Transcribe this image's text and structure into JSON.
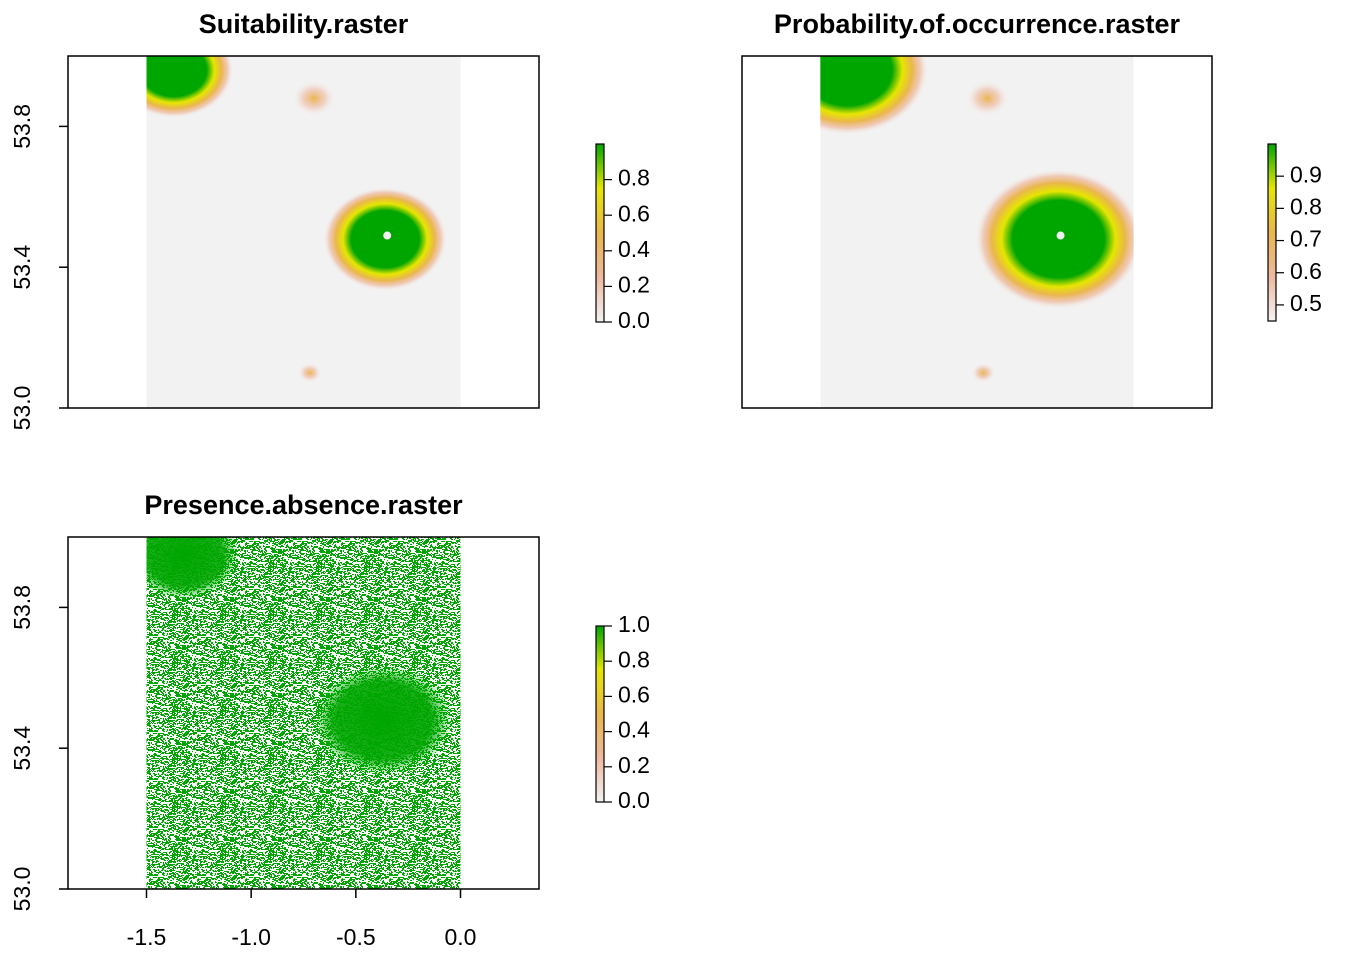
{
  "chart_data": [
    {
      "type": "raster",
      "title": "Suitability.raster",
      "xlim": [
        -1.875,
        0.375
      ],
      "ylim": [
        53.0,
        54.0
      ],
      "extent": [
        -1.5,
        0,
        53.0,
        54.0
      ],
      "yticks": [
        {
          "value": 53.0,
          "label": "53.0"
        },
        53.4,
        53.8
      ],
      "colors": [
        "#f2f2f2",
        "#eeb99f",
        "#eab64e",
        "#e6e600",
        "#00a600"
      ],
      "clim": [
        0,
        1.0
      ],
      "cticks": [
        {
          "value": 0,
          "label": "0.0"
        },
        0.2,
        0.4,
        0.6,
        0.8
      ]
    },
    {
      "type": "raster",
      "title": "Probability.of.occurrence.raster",
      "xlim": [
        -1.875,
        0.375
      ],
      "ylim": [
        53.0,
        54.0
      ],
      "extent": [
        -1.5,
        0,
        53.0,
        54.0
      ],
      "colors": [
        "#f2f2f2",
        "#eeb99f",
        "#eab64e",
        "#e6e600",
        "#00a600"
      ],
      "clim": [
        0.45,
        1.0
      ],
      "cticks": [
        0.5,
        0.6,
        0.7,
        0.8,
        0.9
      ]
    },
    {
      "type": "raster",
      "title": "Presence.absence.raster",
      "xlim": [
        -1.875,
        0.375
      ],
      "ylim": [
        53.0,
        54.0
      ],
      "extent": [
        -1.5,
        0,
        53.0,
        54.0
      ],
      "xticks": [
        -1.5,
        {
          "value": -1.0,
          "label": "-1.0"
        },
        -0.5,
        {
          "value": 0,
          "label": "0.0"
        }
      ],
      "yticks": [
        {
          "value": 53.0,
          "label": "53.0"
        },
        53.4,
        53.8
      ],
      "colors": [
        "#f2f2f2",
        "#eeb99f",
        "#eab64e",
        "#e6e600",
        "#00a600"
      ],
      "clim": [
        0,
        1.0
      ],
      "cticks": [
        {
          "value": 0,
          "label": "0.0"
        },
        0.2,
        0.4,
        0.6,
        0.8,
        {
          "value": 1.0,
          "label": "1.0"
        }
      ]
    }
  ]
}
